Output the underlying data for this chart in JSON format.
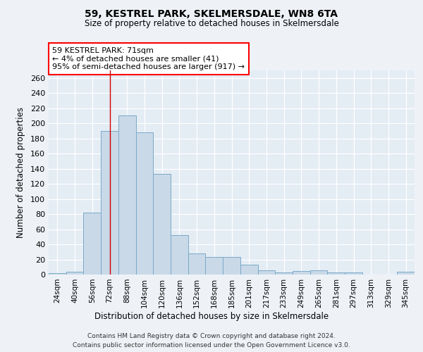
{
  "title": "59, KESTREL PARK, SKELMERSDALE, WN8 6TA",
  "subtitle": "Size of property relative to detached houses in Skelmersdale",
  "xlabel": "Distribution of detached houses by size in Skelmersdale",
  "ylabel": "Number of detached properties",
  "footnote1": "Contains HM Land Registry data © Crown copyright and database right 2024.",
  "footnote2": "Contains public sector information licensed under the Open Government Licence v3.0.",
  "annotation_title": "59 KESTREL PARK: 71sqm",
  "annotation_line1": "← 4% of detached houses are smaller (41)",
  "annotation_line2": "95% of semi-detached houses are larger (917) →",
  "bar_color": "#c9d9e8",
  "bar_edge_color": "#7aaac8",
  "vline_color": "#cc0000",
  "vline_x": 3,
  "categories": [
    "24sqm",
    "40sqm",
    "56sqm",
    "72sqm",
    "88sqm",
    "104sqm",
    "120sqm",
    "136sqm",
    "152sqm",
    "168sqm",
    "185sqm",
    "201sqm",
    "217sqm",
    "233sqm",
    "249sqm",
    "265sqm",
    "281sqm",
    "297sqm",
    "313sqm",
    "329sqm",
    "345sqm"
  ],
  "values": [
    2,
    4,
    82,
    190,
    210,
    188,
    133,
    52,
    28,
    23,
    23,
    13,
    6,
    3,
    5,
    6,
    3,
    3,
    0,
    0,
    4
  ],
  "ylim": [
    0,
    270
  ],
  "yticks": [
    0,
    20,
    40,
    60,
    80,
    100,
    120,
    140,
    160,
    180,
    200,
    220,
    240,
    260
  ],
  "background_color": "#eef2f7",
  "plot_background_color": "#e4ecf4"
}
